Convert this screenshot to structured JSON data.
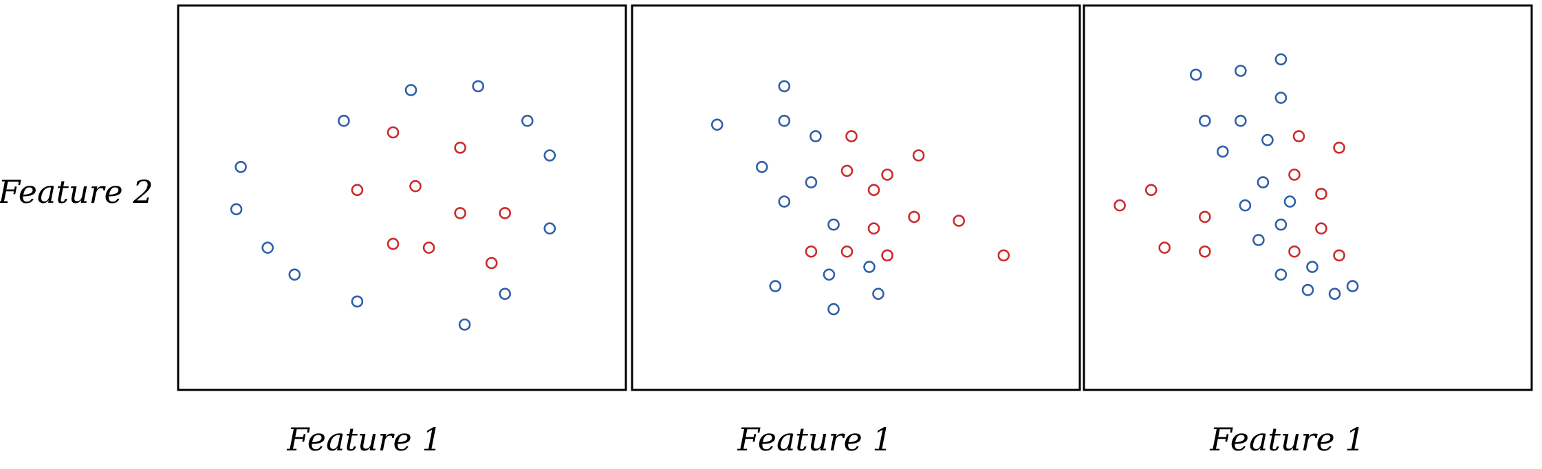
{
  "chart_data": [
    {
      "type": "scatter",
      "xlabel": "Feature 1",
      "ylabel": "Feature 2",
      "xlim": [
        0,
        10
      ],
      "ylim": [
        0,
        10
      ],
      "grid": false,
      "series": [
        {
          "color": "#2e5fa8",
          "points": [
            [
              5.2,
              7.8
            ],
            [
              6.7,
              7.9
            ],
            [
              3.7,
              7.0
            ],
            [
              7.8,
              7.0
            ],
            [
              1.4,
              5.8
            ],
            [
              8.3,
              6.1
            ],
            [
              1.3,
              4.7
            ],
            [
              8.3,
              4.2
            ],
            [
              2.0,
              3.7
            ],
            [
              2.6,
              3.0
            ],
            [
              7.3,
              2.5
            ],
            [
              4.0,
              2.3
            ],
            [
              6.4,
              1.7
            ]
          ]
        },
        {
          "color": "#cc2a2a",
          "points": [
            [
              4.8,
              6.7
            ],
            [
              6.3,
              6.3
            ],
            [
              4.0,
              5.2
            ],
            [
              5.3,
              5.3
            ],
            [
              6.3,
              4.6
            ],
            [
              7.3,
              4.6
            ],
            [
              4.8,
              3.8
            ],
            [
              5.6,
              3.7
            ],
            [
              7.0,
              3.3
            ]
          ]
        }
      ]
    },
    {
      "type": "scatter",
      "xlabel": "Feature 1",
      "ylabel": "",
      "xlim": [
        0,
        10
      ],
      "ylim": [
        0,
        10
      ],
      "grid": false,
      "series": [
        {
          "color": "#2e5fa8",
          "points": [
            [
              1.9,
              6.9
            ],
            [
              3.4,
              7.0
            ],
            [
              3.4,
              7.9
            ],
            [
              4.1,
              6.6
            ],
            [
              2.9,
              5.8
            ],
            [
              4.0,
              5.4
            ],
            [
              3.4,
              4.9
            ],
            [
              4.5,
              4.3
            ],
            [
              5.3,
              3.2
            ],
            [
              4.4,
              3.0
            ],
            [
              3.2,
              2.7
            ],
            [
              5.5,
              2.5
            ],
            [
              4.5,
              2.1
            ]
          ]
        },
        {
          "color": "#cc2a2a",
          "points": [
            [
              4.9,
              6.6
            ],
            [
              6.4,
              6.1
            ],
            [
              4.8,
              5.7
            ],
            [
              5.7,
              5.6
            ],
            [
              5.4,
              5.2
            ],
            [
              6.3,
              4.5
            ],
            [
              7.3,
              4.4
            ],
            [
              5.4,
              4.2
            ],
            [
              4.0,
              3.6
            ],
            [
              4.8,
              3.6
            ],
            [
              5.7,
              3.5
            ],
            [
              8.3,
              3.5
            ]
          ]
        }
      ]
    },
    {
      "type": "scatter",
      "xlabel": "Feature 1",
      "ylabel": "",
      "xlim": [
        0,
        10
      ],
      "ylim": [
        0,
        10
      ],
      "grid": false,
      "series": [
        {
          "color": "#2e5fa8",
          "points": [
            [
              2.5,
              8.2
            ],
            [
              3.5,
              8.3
            ],
            [
              4.4,
              8.6
            ],
            [
              4.4,
              7.6
            ],
            [
              2.7,
              7.0
            ],
            [
              3.5,
              7.0
            ],
            [
              3.1,
              6.2
            ],
            [
              4.1,
              6.5
            ],
            [
              4.0,
              5.4
            ],
            [
              3.6,
              4.8
            ],
            [
              4.6,
              4.9
            ],
            [
              4.4,
              4.3
            ],
            [
              3.9,
              3.9
            ],
            [
              4.4,
              3.0
            ],
            [
              5.1,
              3.2
            ],
            [
              5.0,
              2.6
            ],
            [
              5.6,
              2.5
            ],
            [
              6.0,
              2.7
            ]
          ]
        },
        {
          "color": "#cc2a2a",
          "points": [
            [
              4.8,
              6.6
            ],
            [
              5.7,
              6.3
            ],
            [
              4.7,
              5.6
            ],
            [
              5.3,
              5.1
            ],
            [
              0.8,
              4.8
            ],
            [
              1.5,
              5.2
            ],
            [
              2.7,
              4.5
            ],
            [
              5.3,
              4.2
            ],
            [
              1.8,
              3.7
            ],
            [
              2.7,
              3.6
            ],
            [
              4.7,
              3.6
            ],
            [
              5.7,
              3.5
            ]
          ]
        }
      ]
    }
  ]
}
